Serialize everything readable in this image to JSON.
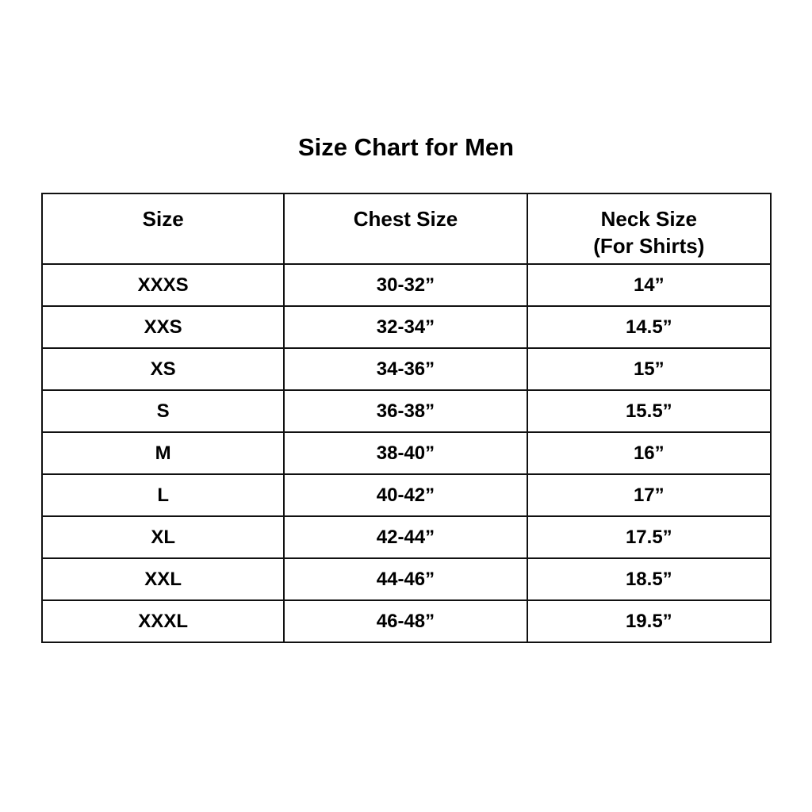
{
  "title": "Size Chart for Men",
  "table": {
    "headers": [
      {
        "line1": "Size",
        "line2": ""
      },
      {
        "line1": "Chest Size",
        "line2": ""
      },
      {
        "line1": "Neck Size",
        "line2": "(For Shirts)"
      }
    ],
    "rows": [
      [
        "XXXS",
        "30-32”",
        "14”"
      ],
      [
        "XXS",
        "32-34”",
        "14.5”"
      ],
      [
        "XS",
        "34-36”",
        "15”"
      ],
      [
        "S",
        "36-38”",
        "15.5”"
      ],
      [
        "M",
        "38-40”",
        "16”"
      ],
      [
        "L",
        "40-42”",
        "17”"
      ],
      [
        "XL",
        "42-44”",
        "17.5”"
      ],
      [
        "XXL",
        "44-46”",
        "18.5”"
      ],
      [
        "XXXL",
        "46-48”",
        "19.5”"
      ]
    ]
  }
}
